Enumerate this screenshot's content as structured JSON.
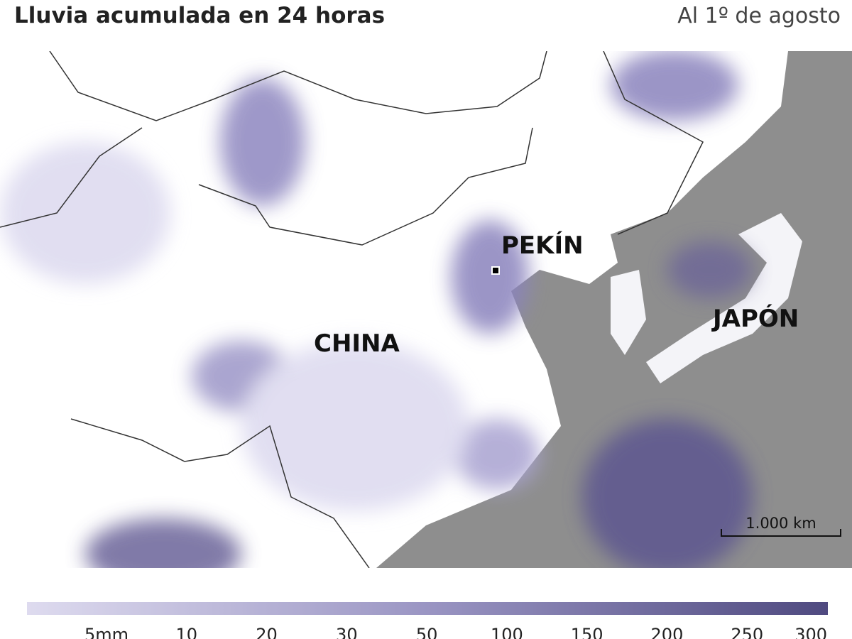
{
  "header": {
    "title": "Lluvia acumulada en 24 horas",
    "date": "Al 1º de agosto"
  },
  "map": {
    "labels": [
      "PEKÍN",
      "CHINA",
      "JAPÓN"
    ],
    "scale": "1.000 km"
  },
  "legend": {
    "labels": [
      "5mm",
      "10",
      "20",
      "30",
      "50",
      "100",
      "150",
      "200",
      "250",
      "300"
    ]
  }
}
